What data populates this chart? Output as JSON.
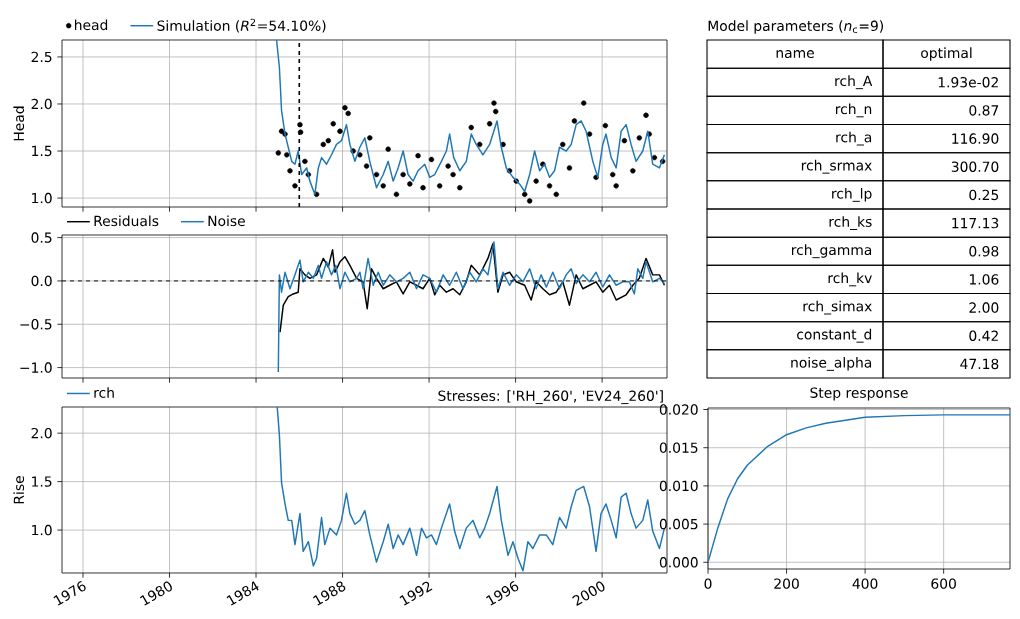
{
  "chart_data": [
    {
      "type": "line",
      "ylabel": "Head",
      "xlim": [
        1975.03,
        2003.0
      ],
      "ylim": [
        0.905,
        2.68
      ],
      "xticks": [
        1976,
        1980,
        1984,
        1988,
        1992,
        1996,
        2000
      ],
      "yticks": [
        {
          "value": 1.0,
          "label": "1.0"
        },
        {
          "value": 1.5,
          "label": "1.5"
        },
        {
          "value": 2.0,
          "label": "2.0"
        },
        {
          "value": 2.5,
          "label": "2.5"
        }
      ],
      "grid": true,
      "legend": "top left",
      "tick_labels": "y",
      "ref_lines": [
        {
          "axis": "x",
          "value": 1986.0,
          "color": "#000000",
          "line_style": "dashed"
        }
      ],
      "series": [
        {
          "name": "head",
          "type": "scatter",
          "marker": "circle",
          "color": "#000000",
          "x": [
            1985.03,
            1985.18,
            1985.34,
            1985.42,
            1985.57,
            1985.8,
            1986.03,
            1986.06,
            1986.26,
            1986.42,
            1986.8,
            1987.11,
            1987.34,
            1987.57,
            1987.88,
            1988.11,
            1988.26,
            1988.49,
            1988.8,
            1989.11,
            1989.26,
            1989.57,
            1989.88,
            1990.11,
            1990.49,
            1990.8,
            1991.11,
            1991.49,
            1991.72,
            1992.11,
            1992.49,
            1992.88,
            1993.11,
            1993.42,
            1993.95,
            1994.34,
            1994.8,
            1995.0,
            1995.08,
            1995.42,
            1995.72,
            1996.03,
            1996.42,
            1996.65,
            1996.95,
            1997.26,
            1997.57,
            1997.88,
            1998.18,
            1998.49,
            1998.72,
            1999.15,
            1999.42,
            1999.72,
            2000.15,
            2000.49,
            2000.65,
            2001.03,
            2001.42,
            2001.72,
            2002.03,
            2002.18,
            2002.42,
            2002.8
          ],
          "values": [
            1.48,
            1.71,
            1.68,
            1.46,
            1.29,
            1.13,
            1.78,
            1.7,
            1.39,
            1.25,
            1.04,
            1.57,
            1.61,
            1.79,
            1.71,
            1.96,
            1.9,
            1.5,
            1.46,
            1.34,
            1.64,
            1.25,
            1.13,
            1.52,
            1.04,
            1.25,
            1.15,
            1.45,
            1.11,
            1.41,
            1.13,
            1.34,
            1.25,
            1.11,
            1.75,
            1.57,
            1.79,
            2.01,
            1.92,
            1.57,
            1.29,
            1.18,
            1.04,
            0.97,
            1.18,
            1.36,
            1.13,
            1.04,
            1.57,
            1.32,
            1.82,
            2.01,
            1.68,
            1.22,
            1.77,
            1.25,
            1.13,
            1.61,
            1.29,
            1.64,
            1.88,
            1.68,
            1.43,
            1.39
          ]
        },
        {
          "name": "Simulation (*R*$^{2}$=54.10%)",
          "color": "#1f77b4",
          "x": [
            1984.95,
            1985.08,
            1985.18,
            1985.34,
            1985.49,
            1985.65,
            1985.8,
            1985.95,
            1986.11,
            1986.34,
            1986.49,
            1986.72,
            1986.88,
            1987.03,
            1987.26,
            1987.49,
            1987.72,
            1987.95,
            1988.18,
            1988.34,
            1988.57,
            1988.8,
            1989.03,
            1989.26,
            1989.57,
            1989.88,
            1990.11,
            1990.34,
            1990.57,
            1990.8,
            1991.03,
            1991.26,
            1991.49,
            1991.8,
            1992.03,
            1992.26,
            1992.57,
            1992.8,
            1992.95,
            1993.14,
            1993.42,
            1993.72,
            1993.95,
            1994.18,
            1994.49,
            1994.8,
            1995.14,
            1995.34,
            1995.57,
            1995.88,
            1996.18,
            1996.42,
            1996.65,
            1996.88,
            1997.11,
            1997.34,
            1997.57,
            1997.8,
            1998.03,
            1998.34,
            1998.57,
            1998.8,
            1999.03,
            1999.26,
            1999.57,
            1999.8,
            2000.03,
            2000.18,
            2000.42,
            2000.65,
            2000.88,
            2001.11,
            2001.34,
            2001.57,
            2001.88,
            2002.11,
            2002.34,
            2002.65,
            2002.88
          ],
          "values": [
            2.68,
            2.39,
            1.93,
            1.68,
            1.54,
            1.39,
            1.36,
            1.5,
            1.25,
            1.32,
            1.18,
            1.04,
            1.32,
            1.43,
            1.36,
            1.46,
            1.57,
            1.61,
            1.78,
            1.57,
            1.39,
            1.54,
            1.64,
            1.39,
            1.11,
            1.25,
            1.39,
            1.18,
            1.32,
            1.5,
            1.25,
            1.18,
            1.29,
            1.36,
            1.22,
            1.25,
            1.39,
            1.5,
            1.68,
            1.43,
            1.29,
            1.39,
            1.68,
            1.57,
            1.46,
            1.57,
            1.82,
            1.54,
            1.32,
            1.22,
            1.15,
            1.07,
            1.25,
            1.5,
            1.29,
            1.36,
            1.22,
            1.29,
            1.54,
            1.5,
            1.57,
            1.78,
            1.82,
            1.71,
            1.39,
            1.22,
            1.57,
            1.68,
            1.43,
            1.32,
            1.71,
            1.78,
            1.57,
            1.39,
            1.5,
            1.71,
            1.36,
            1.32,
            1.46
          ]
        }
      ]
    },
    {
      "type": "other",
      "title": "Model parameters (*n*$_{c}$=9)",
      "annotations": [
        "name",
        "optimal"
      ],
      "categories": [
        "rch_A",
        "rch_n",
        "rch_a",
        "rch_srmax",
        "rch_lp",
        "rch_ks",
        "rch_gamma",
        "rch_kv",
        "rch_simax",
        "constant_d",
        "noise_alpha"
      ],
      "value_labels": [
        "1.93e-02",
        "0.87",
        "116.90",
        "300.70",
        "0.25",
        "117.13",
        "0.98",
        "1.06",
        "2.00",
        "0.42",
        "47.18"
      ]
    },
    {
      "type": "line",
      "xlim": [
        1975.03,
        2003.0
      ],
      "ylim": [
        -1.12,
        0.53
      ],
      "xticks": [
        1976,
        1980,
        1984,
        1988,
        1992,
        1996,
        2000
      ],
      "yticks": [
        {
          "value": -1.0,
          "label": "−1.0"
        },
        {
          "value": -0.5,
          "label": "−0.5"
        },
        {
          "value": 0.0,
          "label": "0.0"
        },
        {
          "value": 0.5,
          "label": "0.5"
        }
      ],
      "grid": true,
      "legend": "top left",
      "tick_labels": "y",
      "ref_lines": [
        {
          "axis": "y",
          "value": 0,
          "color": "#000000",
          "line_style": "dashed"
        }
      ],
      "series": [
        {
          "name": "Residuals",
          "color": "#000000",
          "x": [
            1985.11,
            1985.26,
            1985.49,
            1985.72,
            1985.95,
            1986.03,
            1986.26,
            1986.49,
            1986.8,
            1987.11,
            1987.34,
            1987.54,
            1987.65,
            1987.88,
            1988.11,
            1988.34,
            1988.65,
            1988.95,
            1989.14,
            1989.34,
            1989.57,
            1989.88,
            1990.18,
            1990.49,
            1990.8,
            1991.11,
            1991.42,
            1991.72,
            1992.03,
            1992.26,
            1992.49,
            1992.8,
            1993.11,
            1993.42,
            1993.72,
            1993.95,
            1994.34,
            1994.72,
            1994.95,
            1995.18,
            1995.42,
            1995.72,
            1996.03,
            1996.42,
            1996.72,
            1996.95,
            1997.26,
            1997.57,
            1997.88,
            1998.18,
            1998.49,
            1998.8,
            1999.11,
            1999.42,
            1999.72,
            2000.03,
            2000.34,
            2000.65,
            2001.11,
            2001.42,
            2001.72,
            2002.03,
            2002.34,
            2002.65,
            2002.88
          ],
          "values": [
            -0.59,
            -0.28,
            -0.18,
            -0.15,
            -0.13,
            0.14,
            0.07,
            0.03,
            0.07,
            0.26,
            0.16,
            0.36,
            0.1,
            0.22,
            0.28,
            0.18,
            0.03,
            -0.01,
            -0.32,
            0.14,
            0.03,
            -0.09,
            -0.05,
            -0.01,
            -0.15,
            -0.01,
            -0.05,
            -0.09,
            0.03,
            -0.16,
            -0.05,
            -0.13,
            -0.09,
            -0.16,
            -0.01,
            0.18,
            0.07,
            0.26,
            0.43,
            -0.13,
            0.07,
            0.1,
            -0.01,
            -0.05,
            -0.22,
            -0.01,
            -0.09,
            -0.16,
            -0.13,
            -0.01,
            -0.28,
            0.07,
            -0.09,
            -0.05,
            -0.01,
            -0.13,
            -0.05,
            -0.22,
            -0.16,
            -0.05,
            0.03,
            0.26,
            0.07,
            0.07,
            -0.05
          ]
        },
        {
          "name": "Noise",
          "color": "#1f77b4",
          "x": [
            1985.03,
            1985.08,
            1985.18,
            1985.34,
            1985.57,
            1985.8,
            1986.03,
            1986.18,
            1986.42,
            1986.65,
            1986.88,
            1987.03,
            1987.26,
            1987.49,
            1987.69,
            1987.88,
            1988.11,
            1988.34,
            1988.65,
            1988.8,
            1988.95,
            1989.18,
            1989.42,
            1989.65,
            1989.88,
            1990.18,
            1990.49,
            1990.8,
            1991.11,
            1991.42,
            1991.72,
            1992.03,
            1992.34,
            1992.65,
            1992.95,
            1993.26,
            1993.57,
            1993.88,
            1994.18,
            1994.49,
            1994.72,
            1995.0,
            1995.18,
            1995.42,
            1995.72,
            1996.03,
            1996.34,
            1996.65,
            1996.95,
            1997.18,
            1997.42,
            1997.72,
            1998.03,
            1998.34,
            1998.57,
            1998.8,
            1999.11,
            1999.42,
            1999.72,
            2000.03,
            2000.34,
            2000.65,
            2000.95,
            2001.26,
            2001.49,
            2001.65,
            2001.88,
            2002.03,
            2002.34,
            2002.65,
            2002.88
          ],
          "values": [
            -1.05,
            0.07,
            -0.13,
            0.1,
            -0.09,
            0.07,
            0.24,
            -0.01,
            0.1,
            0.03,
            0.18,
            0.03,
            0.22,
            0.07,
            0.18,
            -0.09,
            0.1,
            -0.01,
            0.03,
            0.1,
            -0.09,
            0.26,
            -0.05,
            0.1,
            -0.05,
            0.07,
            -0.01,
            0.03,
            0.1,
            -0.09,
            0.07,
            0.03,
            -0.13,
            0.07,
            -0.05,
            0.1,
            -0.09,
            0.1,
            -0.01,
            0.14,
            0.07,
            0.45,
            -0.09,
            0.1,
            -0.05,
            0.07,
            -0.01,
            0.14,
            -0.09,
            0.07,
            -0.07,
            0.1,
            -0.09,
            0.07,
            0.14,
            -0.03,
            0.07,
            -0.01,
            0.1,
            -0.07,
            0.07,
            -0.05,
            -0.01,
            -0.01,
            -0.15,
            0.14,
            0.03,
            0.22,
            -0.01,
            0.03,
            -0.03
          ]
        }
      ]
    },
    {
      "type": "line",
      "ylabel": "Rise",
      "xlim": [
        1975.03,
        2003.0
      ],
      "ylim": [
        0.557,
        2.27
      ],
      "xticks": [
        1976,
        1980,
        1984,
        1988,
        1992,
        1996,
        2000
      ],
      "yticks": [
        {
          "value": 1.0,
          "label": "1.0"
        },
        {
          "value": 1.5,
          "label": "1.5"
        },
        {
          "value": 2.0,
          "label": "2.0"
        }
      ],
      "grid": true,
      "legend": "top left",
      "annotations": [
        "Stresses: ['RH_260', 'EV24_260']"
      ],
      "series": [
        {
          "name": "rch",
          "color": "#1f77b4",
          "x": [
            1984.98,
            1985.08,
            1985.18,
            1985.34,
            1985.49,
            1985.65,
            1985.8,
            1986.03,
            1986.18,
            1986.42,
            1986.65,
            1986.8,
            1987.03,
            1987.18,
            1987.42,
            1987.72,
            1987.95,
            1988.18,
            1988.34,
            1988.57,
            1988.8,
            1989.03,
            1989.26,
            1989.57,
            1989.88,
            1990.11,
            1990.34,
            1990.57,
            1990.8,
            1991.11,
            1991.42,
            1991.65,
            1991.88,
            1992.11,
            1992.34,
            1992.57,
            1992.95,
            1993.18,
            1993.42,
            1993.72,
            1994.03,
            1994.34,
            1994.57,
            1994.8,
            1995.14,
            1995.34,
            1995.65,
            1995.88,
            1996.11,
            1996.34,
            1996.57,
            1996.8,
            1997.11,
            1997.42,
            1997.72,
            1998.03,
            1998.34,
            1998.57,
            1998.8,
            1999.15,
            1999.42,
            1999.72,
            1999.95,
            2000.18,
            2000.42,
            2000.65,
            2000.88,
            2001.11,
            2001.34,
            2001.57,
            2001.88,
            2002.11,
            2002.34,
            2002.65,
            2002.88
          ],
          "values": [
            2.27,
            1.98,
            1.49,
            1.27,
            1.1,
            1.1,
            0.85,
            1.17,
            0.78,
            0.88,
            0.63,
            0.71,
            1.13,
            0.85,
            1.02,
            0.95,
            1.1,
            1.38,
            1.17,
            1.06,
            1.1,
            1.2,
            0.95,
            0.67,
            0.88,
            1.06,
            0.81,
            0.95,
            0.85,
            1.02,
            0.74,
            1.02,
            0.92,
            0.95,
            0.85,
            1.02,
            1.27,
            0.99,
            0.81,
            1.02,
            1.1,
            0.92,
            1.02,
            1.17,
            1.45,
            1.1,
            0.74,
            0.88,
            0.71,
            0.58,
            0.88,
            0.81,
            0.95,
            0.95,
            0.85,
            1.13,
            1.02,
            1.24,
            1.41,
            1.45,
            1.24,
            0.78,
            1.17,
            1.27,
            1.1,
            0.92,
            1.34,
            1.38,
            1.17,
            1.02,
            1.1,
            1.31,
            0.99,
            0.81,
            1.02
          ]
        }
      ]
    },
    {
      "type": "line",
      "title": "Step response",
      "xlim": [
        0,
        769
      ],
      "ylim": [
        -0.00088,
        0.0202
      ],
      "xticks": [
        0,
        200,
        400,
        600
      ],
      "yticks": [
        {
          "value": 0.0,
          "label": "0.000"
        },
        {
          "value": 0.005,
          "label": "0.005"
        },
        {
          "value": 0.01,
          "label": "0.010"
        },
        {
          "value": 0.015,
          "label": "0.015"
        },
        {
          "value": 0.02,
          "label": "0.020"
        }
      ],
      "grid": true,
      "series": [
        {
          "color": "#1f77b4",
          "x": [
            0,
            25,
            50,
            75,
            100,
            150,
            200,
            250,
            300,
            400,
            500,
            600,
            769
          ],
          "values": [
            0,
            0.0045,
            0.0083,
            0.0109,
            0.0127,
            0.0151,
            0.0167,
            0.0176,
            0.0182,
            0.019,
            0.0192,
            0.0193,
            0.0193
          ]
        }
      ]
    }
  ]
}
